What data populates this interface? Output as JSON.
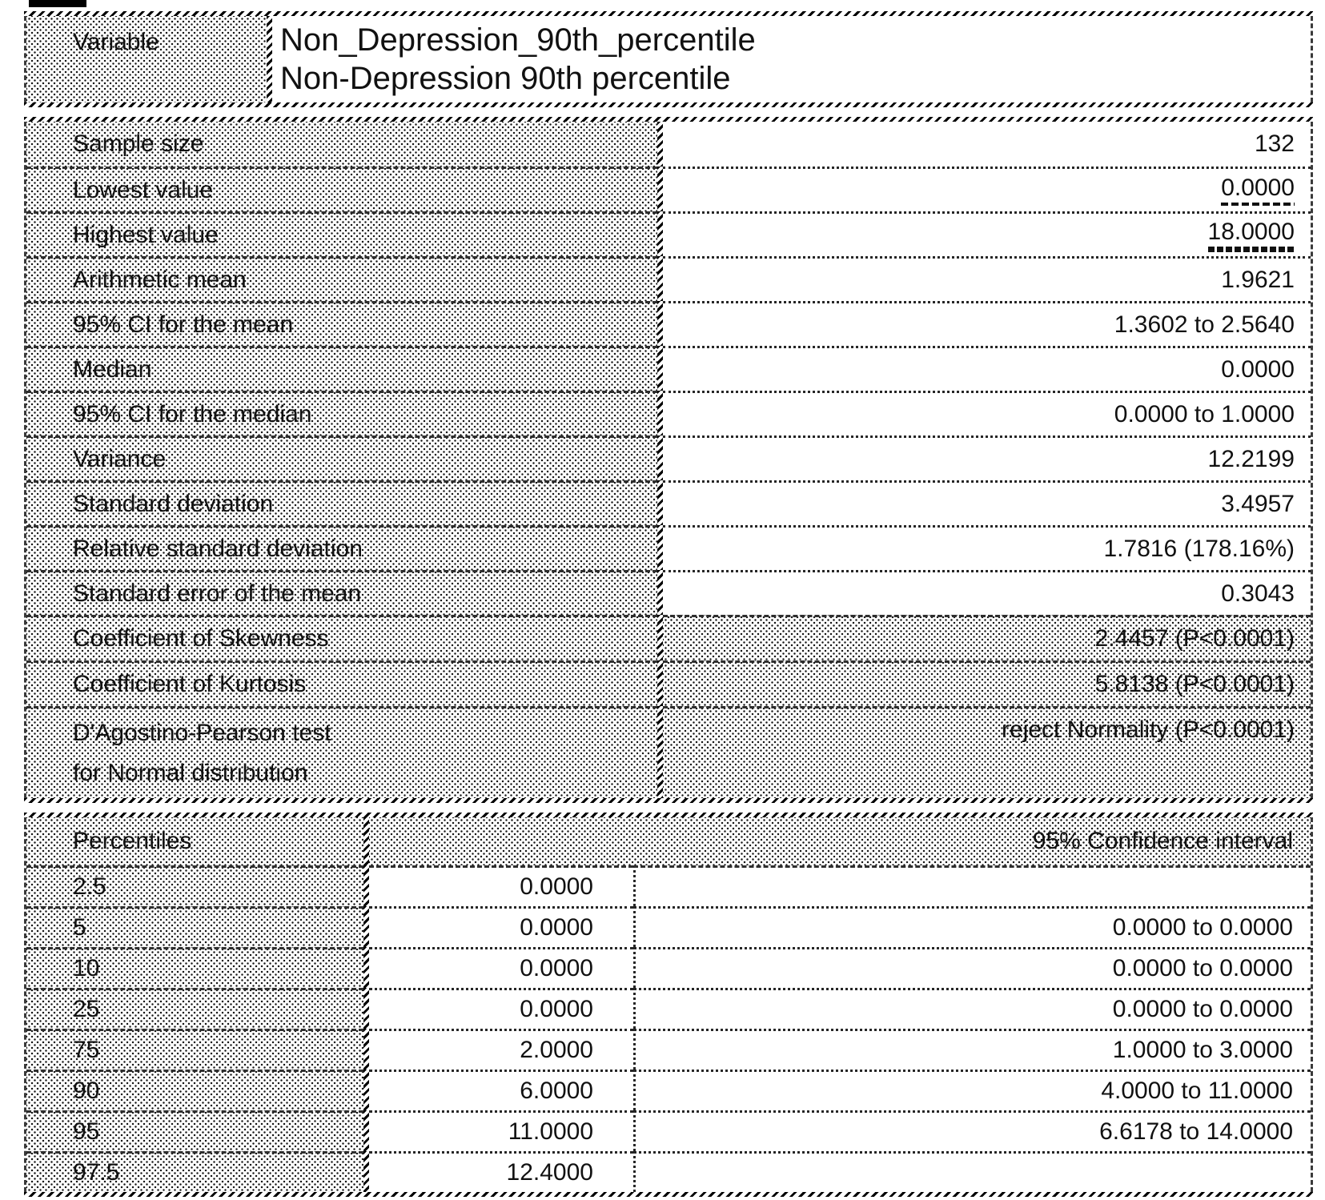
{
  "variable": {
    "label": "Variable",
    "name": "Non_Depression_90th_percentile",
    "description": "Non-Depression 90th percentile"
  },
  "summary": {
    "rows": [
      {
        "label": "Sample size",
        "value": "132"
      },
      {
        "label": "Lowest value",
        "value": "0.0000"
      },
      {
        "label": "Highest value",
        "value": "18.0000"
      },
      {
        "label": "Arithmetic mean",
        "value": "1.9621"
      },
      {
        "label": "95% CI for the mean",
        "value": "1.3602 to 2.5640"
      },
      {
        "label": "Median",
        "value": "0.0000"
      },
      {
        "label": "95% CI for the median",
        "value": "0.0000 to 1.0000"
      },
      {
        "label": "Variance",
        "value": "12.2199"
      },
      {
        "label": "Standard deviation",
        "value": "3.4957"
      },
      {
        "label": "Relative standard deviation",
        "value": "1.7816 (178.16%)"
      },
      {
        "label": "Standard error of the mean",
        "value": "0.3043"
      },
      {
        "label": "Coefficient of Skewness",
        "value": "2.4457 (P<0.0001)"
      },
      {
        "label": "Coefficient of Kurtosis",
        "value": "5.8138 (P<0.0001)"
      },
      {
        "label1": "D'Agostino-Pearson test",
        "label2": "for Normal distribution",
        "value": "reject Normality (P<0.0001)"
      }
    ]
  },
  "percentiles": {
    "title": "Percentiles",
    "ci_header": "95% Confidence interval",
    "rows": [
      {
        "p": "2.5",
        "value": "0.0000",
        "ci": ""
      },
      {
        "p": "5",
        "value": "0.0000",
        "ci": "0.0000 to 0.0000"
      },
      {
        "p": "10",
        "value": "0.0000",
        "ci": "0.0000 to 0.0000"
      },
      {
        "p": "25",
        "value": "0.0000",
        "ci": "0.0000 to 0.0000"
      },
      {
        "p": "75",
        "value": "2.0000",
        "ci": "1.0000 to 3.0000"
      },
      {
        "p": "90",
        "value": "6.0000",
        "ci": "4.0000 to 11.0000"
      },
      {
        "p": "95",
        "value": "11.0000",
        "ci": "6.6178 to 14.0000"
      },
      {
        "p": "97.5",
        "value": "12.4000",
        "ci": ""
      }
    ]
  }
}
